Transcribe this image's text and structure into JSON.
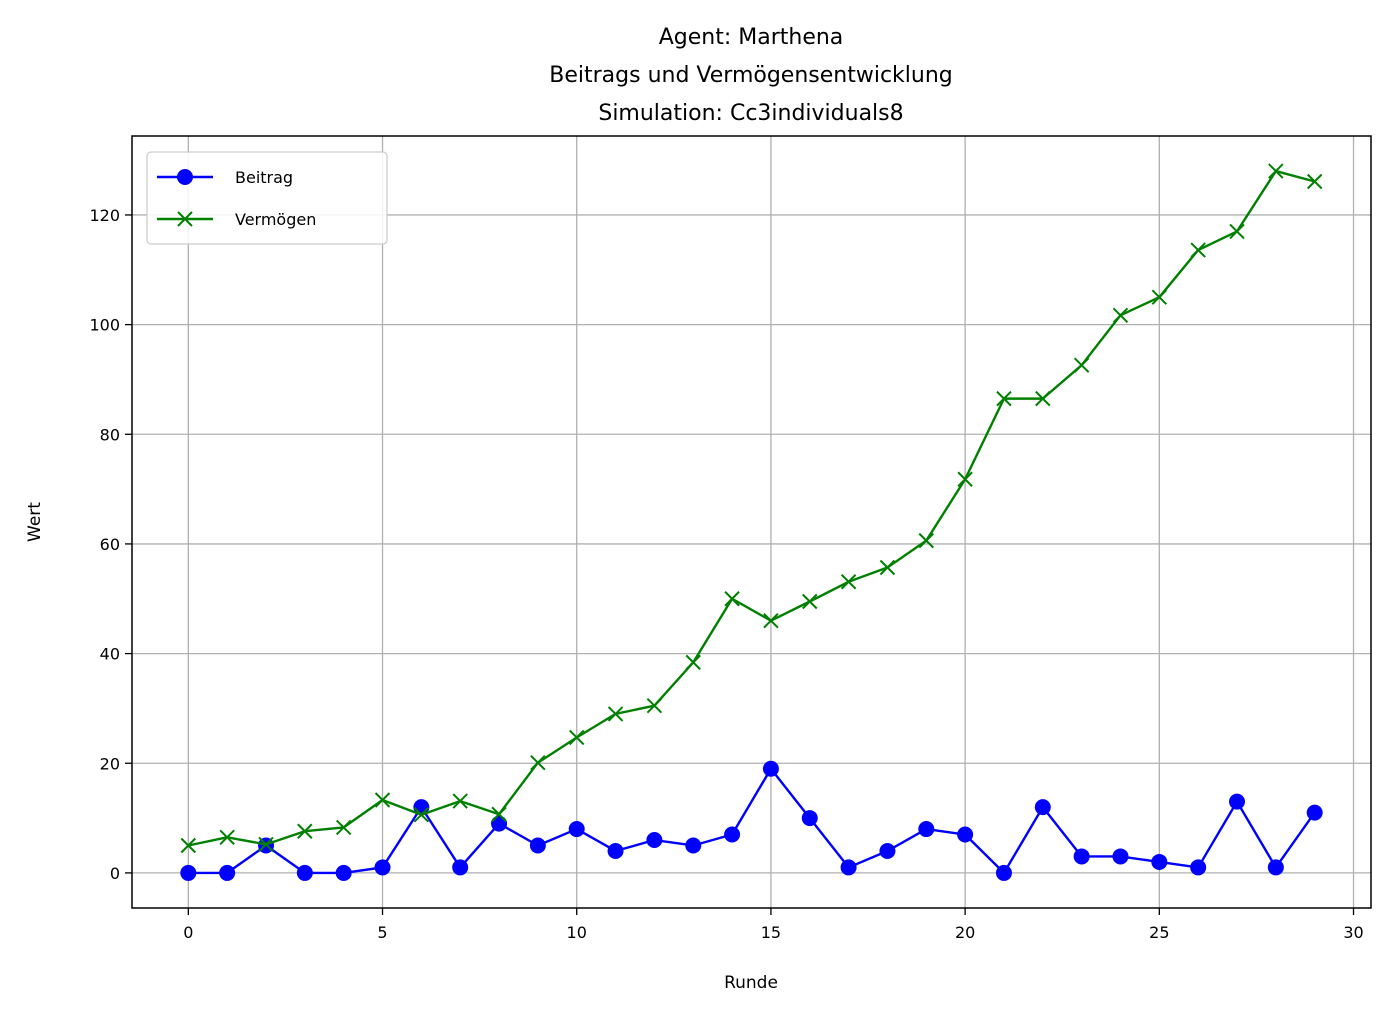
{
  "chart_data": {
    "type": "line",
    "title_lines": [
      "Agent: Marthena",
      "Beitrags und Vermögensentwicklung",
      "Simulation: Cc3individuals8"
    ],
    "xlabel": "Runde",
    "ylabel": "Wert",
    "xlim": [
      -1.45,
      30.45
    ],
    "ylim": [
      -6.4,
      134.4
    ],
    "xticks": [
      0,
      5,
      10,
      15,
      20,
      25,
      30
    ],
    "yticks": [
      0,
      20,
      40,
      60,
      80,
      100,
      120
    ],
    "grid": true,
    "legend_position": "upper-left",
    "x": [
      0,
      1,
      2,
      3,
      4,
      5,
      6,
      7,
      8,
      9,
      10,
      11,
      12,
      13,
      14,
      15,
      16,
      17,
      18,
      19,
      20,
      21,
      22,
      23,
      24,
      25,
      26,
      27,
      28,
      29
    ],
    "series": [
      {
        "name": "Beitrag",
        "color": "#0000ff",
        "marker": "circle",
        "values": [
          0,
          0,
          5,
          0,
          0,
          1,
          12,
          1,
          9,
          5,
          8,
          4,
          6,
          5,
          7,
          19,
          10,
          1,
          4,
          8,
          7,
          0,
          12,
          3,
          3,
          2,
          1,
          13,
          1,
          11
        ]
      },
      {
        "name": "Vermögen",
        "color": "#008000",
        "marker": "x",
        "values": [
          5,
          6.5,
          5.2,
          7.6,
          8.3,
          13.3,
          10.6,
          13.1,
          10.7,
          20.1,
          24.7,
          29,
          30.5,
          38.4,
          50,
          46,
          49.5,
          53.1,
          55.7,
          60.6,
          71.8,
          86.5,
          86.5,
          92.6,
          101.7,
          105,
          113.6,
          117,
          128,
          126.1
        ]
      }
    ]
  }
}
